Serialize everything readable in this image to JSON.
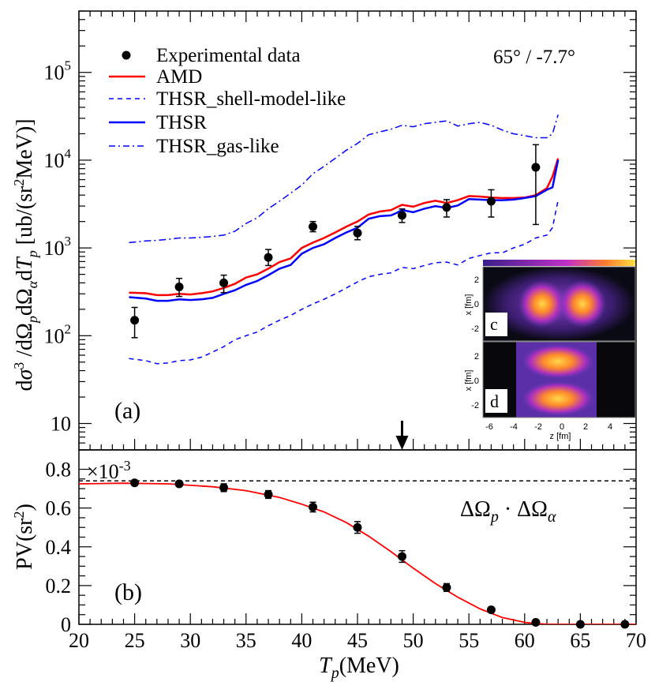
{
  "chart_data": [
    {
      "type": "line",
      "panel": "a",
      "panel_label": "(a)",
      "annotation": "65° / -7.7°",
      "ylabel": "dσ³/dΩpdΩαdTp [ub/(sr²MeV)]",
      "ylabel_parts": {
        "d1": "d",
        "sigma": "σ",
        "exp3": "3",
        "slash1": " /dΩ",
        "sub_p1": "p",
        "dOmega": "dΩ",
        "sub_alpha": "α",
        "dT": "d",
        "T": "T",
        "sub_p2": "p",
        "units_open": " [ub/(sr",
        "units_exp2": "2",
        "units_close": "MeV)]"
      },
      "yscale": "log",
      "xlim": [
        20,
        70
      ],
      "ylim": [
        5,
        500000
      ],
      "y_tick_labels": [
        {
          "value": 10,
          "base": "10",
          "exp": ""
        },
        {
          "value": 100,
          "base": "10",
          "exp": "2"
        },
        {
          "value": 1000,
          "base": "10",
          "exp": "3"
        },
        {
          "value": 10000,
          "base": "10",
          "exp": "4"
        },
        {
          "value": 100000,
          "base": "10",
          "exp": "5"
        }
      ],
      "arrow_marker_x": 49,
      "legend": [
        {
          "label": "Experimental data",
          "style": "marker"
        },
        {
          "label": "AMD",
          "style": "solid-red"
        },
        {
          "label": "THSR_shell-model-like",
          "style": "dashed-blue"
        },
        {
          "label": "THSR",
          "style": "solid-blue"
        },
        {
          "label": "THSR_gas-like",
          "style": "dashdot-blue"
        }
      ],
      "points": [
        {
          "x": 25,
          "y": 150,
          "ylo": 95,
          "yhi": 210
        },
        {
          "x": 29,
          "y": 360,
          "ylo": 280,
          "yhi": 450
        },
        {
          "x": 33,
          "y": 400,
          "ylo": 310,
          "yhi": 490
        },
        {
          "x": 37,
          "y": 780,
          "ylo": 630,
          "yhi": 960
        },
        {
          "x": 41,
          "y": 1750,
          "ylo": 1530,
          "yhi": 2000
        },
        {
          "x": 45,
          "y": 1480,
          "ylo": 1240,
          "yhi": 1760
        },
        {
          "x": 49,
          "y": 2350,
          "ylo": 1950,
          "yhi": 2780
        },
        {
          "x": 53,
          "y": 2900,
          "ylo": 2250,
          "yhi": 3550
        },
        {
          "x": 57,
          "y": 3400,
          "ylo": 2250,
          "yhi": 4600
        },
        {
          "x": 61,
          "y": 8300,
          "ylo": 1850,
          "yhi": 15000
        }
      ],
      "series": [
        {
          "name": "AMD",
          "color": "#ff0000",
          "dash": "solid",
          "x": [
            24.5,
            26,
            27,
            28,
            29,
            30,
            31,
            32,
            33,
            34,
            35,
            36,
            37,
            38,
            39,
            40,
            41,
            42,
            43,
            44,
            45,
            46,
            47,
            48,
            48.5,
            49,
            50,
            51,
            52,
            53,
            54,
            55,
            56,
            57,
            58,
            59,
            60,
            61,
            62,
            62.5,
            63
          ],
          "y": [
            310,
            305,
            290,
            290,
            300,
            295,
            305,
            320,
            350,
            390,
            460,
            500,
            580,
            690,
            760,
            1000,
            1150,
            1300,
            1500,
            1750,
            2000,
            2400,
            2600,
            2700,
            2900,
            3100,
            2950,
            3250,
            3450,
            3250,
            3500,
            3900,
            3850,
            3750,
            3700,
            3700,
            3750,
            4000,
            4800,
            6500,
            10500
          ]
        },
        {
          "name": "THSR",
          "color": "#0000ff",
          "dash": "solid",
          "x": [
            24.5,
            26,
            27,
            28,
            29,
            30,
            31,
            32,
            33,
            34,
            35,
            36,
            37,
            38,
            39,
            40,
            41,
            42,
            43,
            44,
            45,
            46,
            47,
            48,
            48.5,
            49,
            50,
            51,
            52,
            53,
            54,
            55,
            56,
            57,
            58,
            59,
            60,
            61,
            62,
            62.5,
            63
          ],
          "y": [
            275,
            265,
            250,
            250,
            260,
            255,
            260,
            270,
            300,
            330,
            380,
            420,
            490,
            580,
            640,
            860,
            1000,
            1100,
            1300,
            1500,
            1700,
            2150,
            2300,
            2350,
            2500,
            2700,
            2550,
            2800,
            3000,
            2850,
            3050,
            3600,
            3550,
            3500,
            3500,
            3550,
            3700,
            3900,
            4600,
            4900,
            10000
          ]
        },
        {
          "name": "THSR_shell-model-like",
          "color": "#0000ff",
          "dash": "dashed",
          "x": [
            24.5,
            26,
            27,
            28,
            29,
            30,
            31,
            32,
            33,
            34,
            35,
            36,
            37,
            38,
            39,
            40,
            41,
            42,
            43,
            44,
            45,
            46,
            47,
            48,
            49,
            50,
            51,
            52,
            53,
            54,
            55,
            56,
            57,
            58,
            59,
            60,
            61,
            62,
            62.5,
            63
          ],
          "y": [
            55,
            52,
            48,
            49,
            52,
            53,
            57,
            65,
            75,
            90,
            100,
            110,
            130,
            150,
            170,
            200,
            230,
            260,
            300,
            350,
            410,
            470,
            500,
            520,
            600,
            580,
            630,
            680,
            690,
            640,
            760,
            820,
            880,
            880,
            1000,
            1100,
            1300,
            1400,
            1700,
            3500
          ]
        },
        {
          "name": "THSR_gas-like",
          "color": "#0000ff",
          "dash": "dashdot",
          "x": [
            24.5,
            26,
            27,
            28,
            29,
            30,
            31,
            32,
            33,
            34,
            35,
            36,
            37,
            38,
            39,
            40,
            41,
            42,
            43,
            44,
            45,
            46,
            47,
            48,
            49,
            50,
            51,
            52,
            53,
            54,
            55,
            56,
            57,
            58,
            59,
            60,
            61,
            62,
            62.5,
            63
          ],
          "y": [
            1150,
            1200,
            1220,
            1250,
            1300,
            1300,
            1320,
            1350,
            1400,
            1550,
            1900,
            2200,
            2800,
            3400,
            4200,
            5200,
            7000,
            8500,
            10500,
            13000,
            15500,
            19500,
            21000,
            22500,
            25000,
            24000,
            26000,
            27000,
            28000,
            24500,
            26000,
            27000,
            25000,
            22000,
            20000,
            19000,
            18000,
            18000,
            20000,
            33000
          ]
        }
      ]
    },
    {
      "type": "line",
      "panel": "b",
      "panel_label": "(b)",
      "annotation": "ΔΩp · ΔΩα",
      "annotation_parts": {
        "d1": "ΔΩ",
        "s1": "p",
        "dot": " · ΔΩ",
        "s2": "α"
      },
      "multiplier": "×10",
      "multiplier_exp": "-3",
      "ylabel": "PV(sr²)",
      "ylabel_parts": {
        "main": "PV(sr",
        "exp": "2",
        "close": ")"
      },
      "xlabel": "Tp (MeV)",
      "xlabel_parts": {
        "T": "T",
        "sub": "p",
        "units": "(MeV)"
      },
      "xlim": [
        20,
        70
      ],
      "ylim": [
        0,
        0.9
      ],
      "x_ticks": [
        20,
        25,
        30,
        35,
        40,
        45,
        50,
        55,
        60,
        65,
        70
      ],
      "x_tick_labels": [
        "20",
        "25",
        "30",
        "35",
        "40",
        "45",
        "50",
        "55",
        "60",
        "65",
        "70"
      ],
      "y_ticks": [
        0,
        0.2,
        0.4,
        0.6,
        0.8
      ],
      "y_tick_labels": [
        "0",
        "0.2",
        "0.4",
        "0.6",
        "0.8"
      ],
      "reference_line_y": 0.74,
      "points": [
        {
          "x": 25,
          "y": 0.73,
          "err": 0.012
        },
        {
          "x": 29,
          "y": 0.725,
          "err": 0.012
        },
        {
          "x": 33,
          "y": 0.705,
          "err": 0.02
        },
        {
          "x": 37,
          "y": 0.67,
          "err": 0.02
        },
        {
          "x": 41,
          "y": 0.605,
          "err": 0.025
        },
        {
          "x": 45,
          "y": 0.5,
          "err": 0.03
        },
        {
          "x": 49,
          "y": 0.35,
          "err": 0.03
        },
        {
          "x": 53,
          "y": 0.19,
          "err": 0.02
        },
        {
          "x": 57,
          "y": 0.075,
          "err": 0.008
        },
        {
          "x": 61,
          "y": 0.01,
          "err": 0.004
        },
        {
          "x": 65,
          "y": 0.0,
          "err": 0.0
        },
        {
          "x": 69,
          "y": 0.0,
          "err": 0.0
        }
      ],
      "curve_color": "#ff0000",
      "curve": {
        "x": [
          20,
          24,
          28,
          32,
          35,
          38,
          40,
          42,
          44,
          46,
          48,
          50,
          52,
          54,
          56,
          58,
          60,
          61,
          62,
          63,
          66,
          70
        ],
        "y": [
          0.725,
          0.728,
          0.725,
          0.71,
          0.69,
          0.655,
          0.62,
          0.58,
          0.525,
          0.455,
          0.375,
          0.29,
          0.21,
          0.14,
          0.08,
          0.035,
          0.01,
          0.004,
          0.001,
          0.0,
          0.0,
          0.0
        ]
      }
    }
  ],
  "insets": {
    "colorbar": {
      "from": "#3a1f8a",
      "mid": "#b02fc0",
      "to": "#ffe040"
    },
    "x_axis_label": "x [fm]",
    "z_axis_label": "z [fm]",
    "x_tick_labels": [
      "2",
      "0",
      "-2"
    ],
    "z_tick_labels": [
      "-6",
      "-4",
      "-2",
      "0",
      "2",
      "4"
    ],
    "panel_c_label": "c",
    "panel_d_label": "d"
  }
}
